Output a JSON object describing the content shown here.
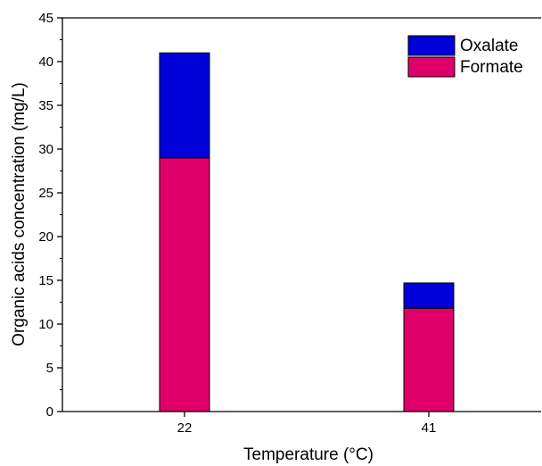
{
  "chart_data": {
    "type": "bar",
    "stacked": true,
    "categories": [
      "22",
      "41"
    ],
    "series": [
      {
        "name": "Formate",
        "values": [
          29,
          11.8
        ],
        "color": "#e0006a"
      },
      {
        "name": "Oxalate",
        "values": [
          12,
          2.9
        ],
        "color": "#0000d8"
      }
    ],
    "legend_order": [
      "Oxalate",
      "Formate"
    ],
    "xlabel": "Temperature (°C)",
    "ylabel": "Organic acids concentration (mg/L)",
    "ylim": [
      0,
      45
    ],
    "yticks": [
      0,
      5,
      10,
      15,
      20,
      25,
      30,
      35,
      40,
      45
    ],
    "grid": false,
    "legend_position": "top-right"
  }
}
